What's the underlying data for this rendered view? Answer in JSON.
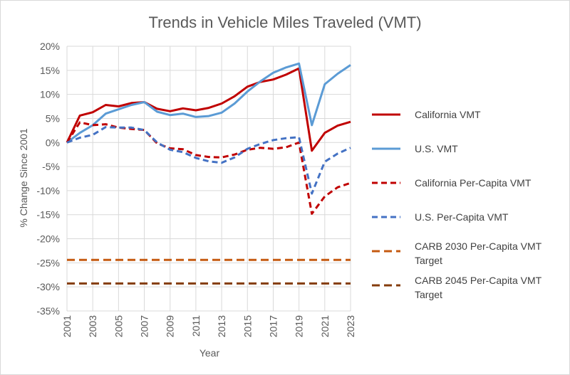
{
  "chart_data": {
    "type": "line",
    "title": "Trends in Vehicle Miles Traveled (VMT)",
    "xlabel": "Year",
    "ylabel": "% Change Since 2001",
    "ylim": [
      -35,
      20
    ],
    "y_ticks": [
      "20%",
      "15%",
      "10%",
      "5%",
      "0%",
      "-5%",
      "-10%",
      "-15%",
      "-20%",
      "-25%",
      "-30%",
      "-35%"
    ],
    "x": [
      2001,
      2002,
      2003,
      2004,
      2005,
      2006,
      2007,
      2008,
      2009,
      2010,
      2011,
      2012,
      2013,
      2014,
      2015,
      2016,
      2017,
      2018,
      2019,
      2020,
      2021,
      2022,
      2023
    ],
    "x_tick_labels": [
      "2001",
      "2003",
      "2005",
      "2007",
      "2009",
      "2011",
      "2013",
      "2015",
      "2017",
      "2019",
      "2021",
      "2023"
    ],
    "series": [
      {
        "name": "California VMT",
        "color": "#c00000",
        "style": "solid",
        "values": [
          0,
          5.6,
          6.3,
          7.8,
          7.5,
          8.2,
          8.4,
          7.0,
          6.5,
          7.1,
          6.7,
          7.2,
          8.1,
          9.6,
          11.6,
          12.6,
          13.1,
          14.1,
          15.4,
          -1.7,
          2.0,
          3.5,
          4.3
        ]
      },
      {
        "name": "U.S. VMT",
        "color": "#5b9bd5",
        "style": "solid",
        "values": [
          0,
          2.0,
          3.6,
          6.0,
          6.9,
          7.8,
          8.4,
          6.4,
          5.7,
          6.0,
          5.3,
          5.5,
          6.2,
          8.1,
          10.6,
          12.7,
          14.5,
          15.6,
          16.4,
          3.6,
          12.1,
          14.3,
          16.1
        ]
      },
      {
        "name": "California Per-Capita VMT",
        "color": "#c00000",
        "style": "dashed",
        "values": [
          0,
          4.2,
          3.6,
          3.8,
          3.1,
          2.8,
          2.6,
          -0.2,
          -1.2,
          -1.4,
          -2.6,
          -3.0,
          -3.1,
          -2.5,
          -1.5,
          -1.1,
          -1.3,
          -1.0,
          0.0,
          -14.8,
          -11.2,
          -9.3,
          -8.4
        ]
      },
      {
        "name": "U.S. Per-Capita VMT",
        "color": "#4472c4",
        "style": "dashed",
        "values": [
          0,
          1.0,
          1.6,
          3.2,
          3.1,
          3.1,
          2.6,
          0.0,
          -1.5,
          -2.0,
          -3.2,
          -3.9,
          -4.2,
          -3.1,
          -1.3,
          -0.3,
          0.5,
          0.9,
          1.1,
          -10.6,
          -4.0,
          -2.3,
          -1.1
        ]
      },
      {
        "name": "CARB 2030 Per-Capita VMT Target",
        "color": "#c55a11",
        "style": "dashed-thick",
        "values": [
          -24.4,
          -24.4,
          -24.4,
          -24.4,
          -24.4,
          -24.4,
          -24.4,
          -24.4,
          -24.4,
          -24.4,
          -24.4,
          -24.4,
          -24.4,
          -24.4,
          -24.4,
          -24.4,
          -24.4,
          -24.4,
          -24.4,
          -24.4,
          -24.4,
          -24.4,
          -24.4
        ]
      },
      {
        "name": "CARB 2045 Per-Capita VMT Target",
        "color": "#843c0c",
        "style": "dashed-thick",
        "values": [
          -29.3,
          -29.3,
          -29.3,
          -29.3,
          -29.3,
          -29.3,
          -29.3,
          -29.3,
          -29.3,
          -29.3,
          -29.3,
          -29.3,
          -29.3,
          -29.3,
          -29.3,
          -29.3,
          -29.3,
          -29.3,
          -29.3,
          -29.3,
          -29.3,
          -29.3,
          -29.3
        ]
      }
    ],
    "legend": {
      "placement": "right",
      "entries": [
        [
          "California VMT"
        ],
        [
          "U.S. VMT"
        ],
        [
          "California Per-Capita VMT"
        ],
        [
          "U.S. Per-Capita VMT"
        ],
        [
          "CARB 2030 Per-Capita VMT",
          "Target"
        ],
        [
          "CARB 2045 Per-Capita VMT",
          "Target"
        ]
      ]
    },
    "grid": true
  }
}
